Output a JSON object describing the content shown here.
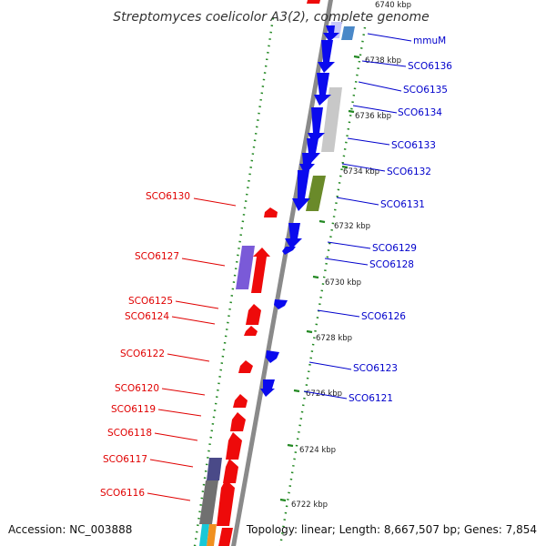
{
  "title": "Streptomyces coelicolor A3(2), complete genome",
  "top_partial_label": "6740 kbp",
  "footer": {
    "accession": "Accession: NC_003888",
    "summary": "Topology: linear; Length: 8,667,507 bp; Genes: 7,854"
  },
  "kbp_labels": [
    "6738 kbp",
    "6736 kbp",
    "6734 kbp",
    "6732 kbp",
    "6730 kbp",
    "6728 kbp",
    "6726 kbp",
    "6724 kbp",
    "6722 kbp"
  ],
  "genes_forward": [
    "mmuM",
    "SCO6136",
    "SCO6135",
    "SCO6134",
    "SCO6133",
    "SCO6132",
    "SCO6131",
    "SCO6129",
    "SCO6128",
    "SCO6126",
    "SCO6123",
    "SCO6121"
  ],
  "genes_reverse": [
    "SCO6130",
    "SCO6127",
    "SCO6125",
    "SCO6124",
    "SCO6122",
    "SCO6120",
    "SCO6119",
    "SCO6118",
    "SCO6117",
    "SCO6116"
  ],
  "colors": {
    "forward": "#0a0aee",
    "reverse": "#ee0a0a",
    "backbone": "#8a8a8a",
    "ticks": "#228822"
  }
}
